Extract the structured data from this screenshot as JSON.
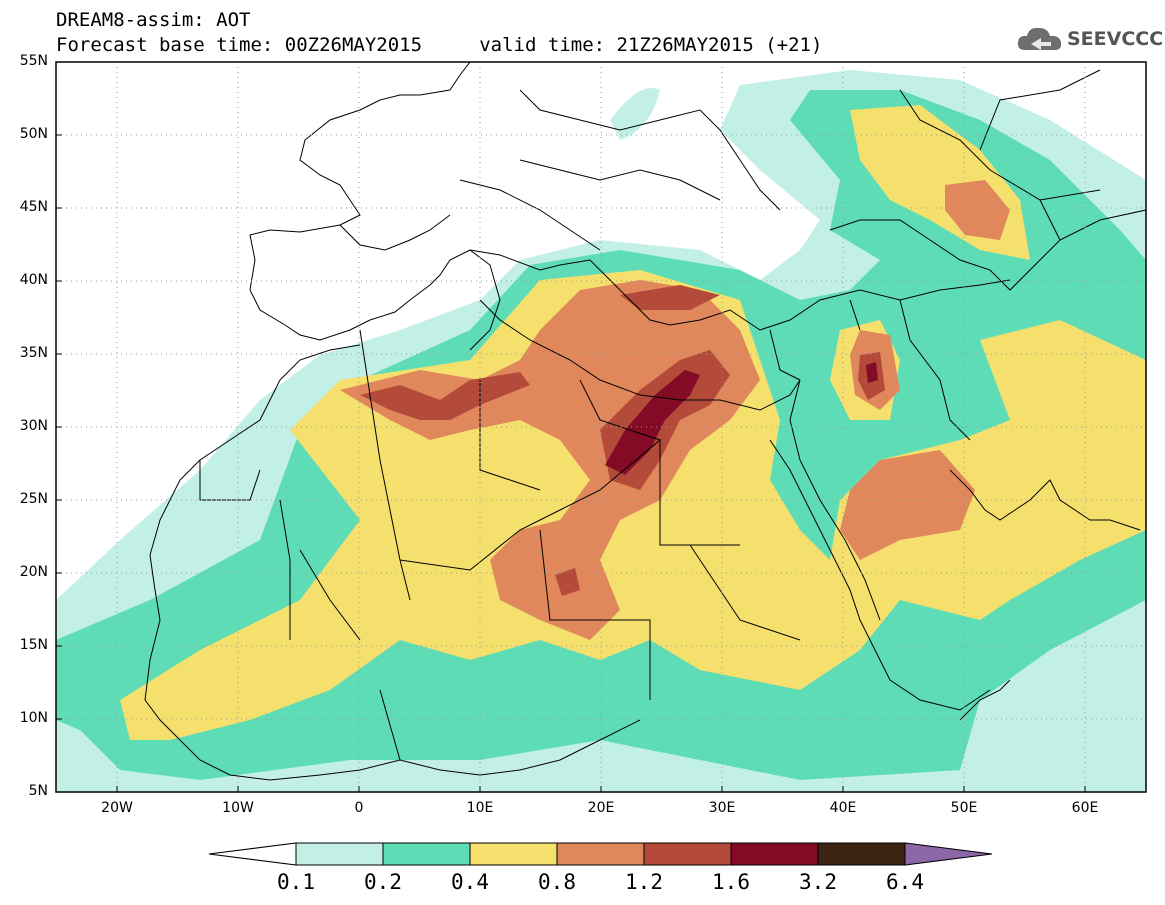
{
  "header": {
    "title_line1": "DREAM8-assim: AOT",
    "title_line2": "Forecast base time: 00Z26MAY2015     valid time: 21Z26MAY2015 (+21)",
    "logo_text": "SEEVCCC"
  },
  "map": {
    "lat_labels": [
      "55N",
      "50N",
      "45N",
      "40N",
      "35N",
      "30N",
      "25N",
      "20N",
      "15N",
      "10N",
      "5N"
    ],
    "lon_labels": [
      "20W",
      "10W",
      "0",
      "10E",
      "20E",
      "30E",
      "40E",
      "50E",
      "60E"
    ]
  },
  "legend": {
    "labels": [
      "0.1",
      "0.2",
      "0.4",
      "0.8",
      "1.2",
      "1.6",
      "3.2",
      "6.4"
    ],
    "colors": [
      "#ffffff",
      "#c2f0e6",
      "#5edcb6",
      "#f5e06e",
      "#e0875c",
      "#b34a3a",
      "#830b25",
      "#3c2412",
      "#8c67a8"
    ]
  }
}
